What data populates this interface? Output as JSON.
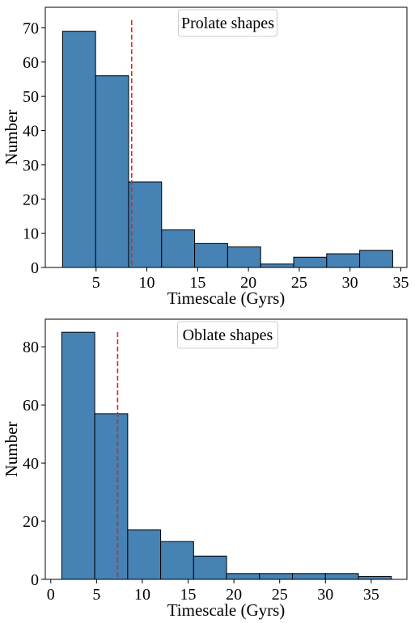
{
  "chart_data": [
    {
      "type": "bar",
      "title": "Prolate shapes",
      "legend_position": "top-center",
      "xlabel": "Timescale (Gyrs)",
      "ylabel": "Number",
      "xlim": [
        0.0,
        35.6
      ],
      "ylim": [
        0,
        76
      ],
      "xticks": [
        5,
        10,
        15,
        20,
        25,
        30,
        35
      ],
      "yticks": [
        0,
        10,
        20,
        30,
        40,
        50,
        60,
        70
      ],
      "bins": [
        {
          "x0": 1.7,
          "x1": 4.95,
          "count": 69
        },
        {
          "x0": 4.95,
          "x1": 8.2,
          "count": 56
        },
        {
          "x0": 8.2,
          "x1": 11.45,
          "count": 25
        },
        {
          "x0": 11.45,
          "x1": 14.7,
          "count": 11
        },
        {
          "x0": 14.7,
          "x1": 17.95,
          "count": 7
        },
        {
          "x0": 17.95,
          "x1": 21.2,
          "count": 6
        },
        {
          "x0": 21.2,
          "x1": 24.45,
          "count": 1
        },
        {
          "x0": 24.45,
          "x1": 27.7,
          "count": 3
        },
        {
          "x0": 27.7,
          "x1": 30.95,
          "count": 4
        },
        {
          "x0": 30.95,
          "x1": 34.2,
          "count": 5
        }
      ],
      "vline": {
        "x": 8.5,
        "color": "#e8201d"
      },
      "bar_color": "#4682b4",
      "edge_color": "#000000"
    },
    {
      "type": "bar",
      "title": "Oblate shapes",
      "legend_position": "top-center",
      "xlabel": "Timescale (Gyrs)",
      "ylabel": "Number",
      "xlim": [
        -0.6,
        38.9
      ],
      "ylim": [
        0,
        89.5
      ],
      "xticks": [
        0,
        5,
        10,
        15,
        20,
        25,
        30,
        35
      ],
      "yticks": [
        0,
        20,
        40,
        60,
        80
      ],
      "bins": [
        {
          "x0": 1.2,
          "x1": 4.8,
          "count": 85
        },
        {
          "x0": 4.8,
          "x1": 8.4,
          "count": 57
        },
        {
          "x0": 8.4,
          "x1": 12.0,
          "count": 17
        },
        {
          "x0": 12.0,
          "x1": 15.6,
          "count": 13
        },
        {
          "x0": 15.6,
          "x1": 19.2,
          "count": 8
        },
        {
          "x0": 19.2,
          "x1": 22.8,
          "count": 2
        },
        {
          "x0": 22.8,
          "x1": 26.4,
          "count": 2
        },
        {
          "x0": 26.4,
          "x1": 30.0,
          "count": 2
        },
        {
          "x0": 30.0,
          "x1": 33.6,
          "count": 2
        },
        {
          "x0": 33.6,
          "x1": 37.2,
          "count": 1
        }
      ],
      "vline": {
        "x": 7.3,
        "color": "#e8201d"
      },
      "bar_color": "#4682b4",
      "edge_color": "#000000"
    }
  ]
}
